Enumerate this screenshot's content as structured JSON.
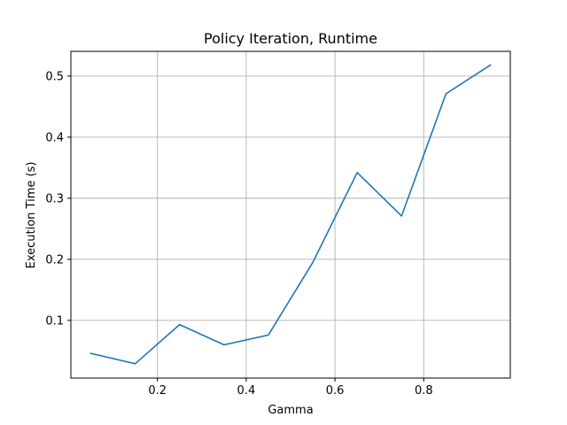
{
  "chart_data": {
    "type": "line",
    "title": "Policy Iteration, Runtime",
    "xlabel": "Gamma",
    "ylabel": "Execution Time (s)",
    "xlim": [
      0.005,
      0.995
    ],
    "ylim": [
      0.0055,
      0.5405
    ],
    "xticks": [
      0.2,
      0.4,
      0.6,
      0.8
    ],
    "xtick_labels": [
      "0.2",
      "0.4",
      "0.6",
      "0.8"
    ],
    "yticks": [
      0.1,
      0.2,
      0.3,
      0.4,
      0.5
    ],
    "ytick_labels": [
      "0.1",
      "0.2",
      "0.3",
      "0.4",
      "0.5"
    ],
    "grid": true,
    "series": [
      {
        "color": "#1f77b4",
        "x": [
          0.05,
          0.15,
          0.25,
          0.35,
          0.45,
          0.55,
          0.65,
          0.75,
          0.85,
          0.95
        ],
        "y": [
          0.046,
          0.029,
          0.093,
          0.06,
          0.076,
          0.195,
          0.342,
          0.271,
          0.471,
          0.518
        ]
      }
    ]
  }
}
